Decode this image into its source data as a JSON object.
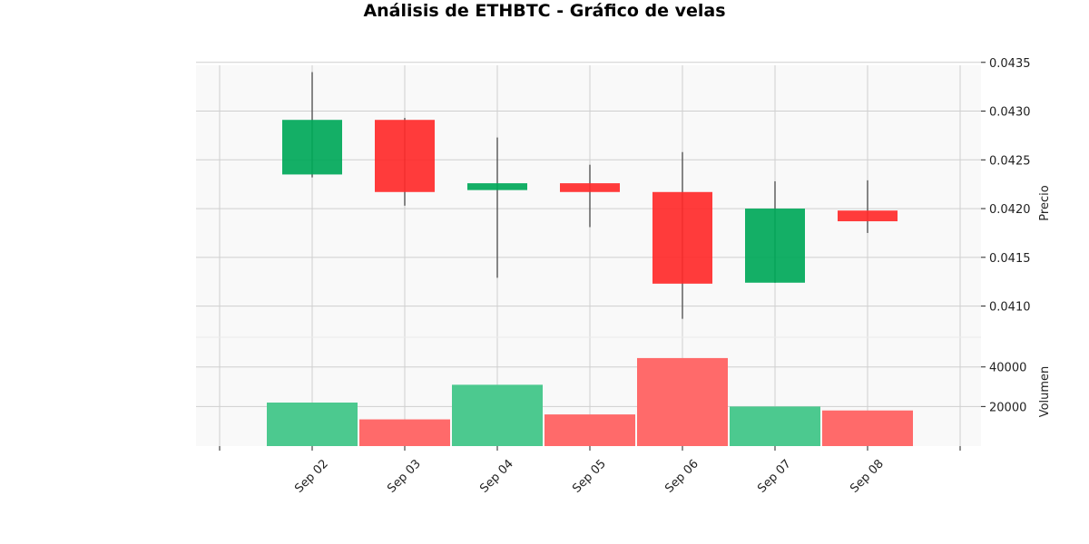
{
  "chart_data": {
    "type": "candlestick",
    "title": "Análisis de ETHBTC - Gráfico de velas",
    "xlabel": "",
    "price_ylabel": "Precio",
    "volume_ylabel": "Volumen",
    "categories": [
      "Sep 02",
      "Sep 03",
      "Sep 04",
      "Sep 05",
      "Sep 06",
      "Sep 07",
      "Sep 08"
    ],
    "open": [
      0.04235,
      0.04291,
      0.04219,
      0.04226,
      0.04217,
      0.04124,
      0.04198
    ],
    "high": [
      0.0434,
      0.04293,
      0.04273,
      0.04245,
      0.04258,
      0.04228,
      0.04229
    ],
    "low": [
      0.04232,
      0.04203,
      0.04129,
      0.04181,
      0.04087,
      0.04124,
      0.04175
    ],
    "close": [
      0.04291,
      0.04217,
      0.04226,
      0.04217,
      0.04123,
      0.042,
      0.04187
    ],
    "volume": [
      22000,
      13500,
      31000,
      16000,
      44500,
      20000,
      18000
    ],
    "price_ylim": [
      0.04068,
      0.04347
    ],
    "volume_ylim": [
      0,
      55000
    ],
    "price_ticks": [
      "0.0410",
      "0.0415",
      "0.0420",
      "0.0425",
      "0.0430",
      "0.0435"
    ],
    "volume_ticks": [
      "20000",
      "40000"
    ],
    "grid": true,
    "colors": {
      "up": "#00a859",
      "down": "#ff2a2a",
      "up_volume": "#4cc98f",
      "down_volume": "#ff6a6a",
      "wick": "#555555",
      "panel_bg": "#f9f9f9",
      "grid": "#cfcfcf"
    }
  }
}
